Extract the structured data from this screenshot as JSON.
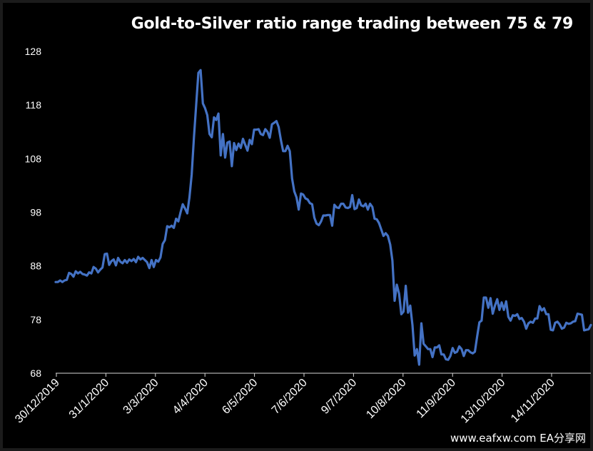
{
  "chart_data": {
    "type": "line",
    "title": "Gold-to-Silver ratio range trading between 75 & 79",
    "xlabel": "",
    "ylabel": "",
    "ylim": [
      68,
      128
    ],
    "yticks": [
      68,
      78,
      88,
      98,
      108,
      118,
      128
    ],
    "xticks": [
      "30/12/2019",
      "31/1/2020",
      "3/3/2020",
      "4/4/2020",
      "6/5/2020",
      "7/6/2020",
      "9/7/2020",
      "10/8/2020",
      "11/9/2020",
      "13/10/2020",
      "14/11/2020"
    ],
    "grid": false,
    "legend": "none",
    "color": "#4472c4",
    "series": [
      {
        "values": [
          85.0,
          85.0,
          85.3,
          85.0,
          85.3,
          85.4,
          86.7,
          86.5,
          86.0,
          87.0,
          86.6,
          86.9,
          86.5,
          86.4,
          86.2,
          86.8,
          86.6,
          87.8,
          87.5,
          86.8,
          87.3,
          87.7,
          90.2,
          90.3,
          88.2,
          88.9,
          89.2,
          88.1,
          89.5,
          88.8,
          88.5,
          89.1,
          88.6,
          89.2,
          88.9,
          89.3,
          88.7,
          89.7,
          89.2,
          89.5,
          89.1,
          88.7,
          87.6,
          89.1,
          87.8,
          89.1,
          88.8,
          89.6,
          92.1,
          92.8,
          95.4,
          95.2,
          95.5,
          95.1,
          96.8,
          96.3,
          98.0,
          99.5,
          98.7,
          97.8,
          100.8,
          105.0,
          112.0,
          118.0,
          124.0,
          124.5,
          118.3,
          117.4,
          116.1,
          112.6,
          112.0,
          115.7,
          115.2,
          116.4,
          108.6,
          112.6,
          108.2,
          111.0,
          111.2,
          106.6,
          110.9,
          109.6,
          110.8,
          110.0,
          111.7,
          110.6,
          109.5,
          111.5,
          110.7,
          113.4,
          113.4,
          113.5,
          112.6,
          112.4,
          113.5,
          113.0,
          111.9,
          114.4,
          114.7,
          115.0,
          113.9,
          111.5,
          109.4,
          109.4,
          110.4,
          109.4,
          104.3,
          101.9,
          100.8,
          98.5,
          101.5,
          101.3,
          100.6,
          100.4,
          99.7,
          99.5,
          97.0,
          95.9,
          95.6,
          96.3,
          97.4,
          97.4,
          97.5,
          97.5,
          95.5,
          99.4,
          98.9,
          98.8,
          99.6,
          99.6,
          98.9,
          98.8,
          99.0,
          101.2,
          98.6,
          98.8,
          100.4,
          99.3,
          99.1,
          99.6,
          98.5,
          99.6,
          99.0,
          96.8,
          96.7,
          96.0,
          94.8,
          93.6,
          94.1,
          93.6,
          92.0,
          89.0,
          81.5,
          84.5,
          82.8,
          79.0,
          79.5,
          84.3,
          79.3,
          80.6,
          77.0,
          71.3,
          72.5,
          69.6,
          77.3,
          73.5,
          73.0,
          72.5,
          72.5,
          71.0,
          72.8,
          72.8,
          73.2,
          71.5,
          71.5,
          70.6,
          70.5,
          71.2,
          72.7,
          71.8,
          72.0,
          73.0,
          72.5,
          71.2,
          72.3,
          72.3,
          71.9,
          71.7,
          72.0,
          74.8,
          77.5,
          77.8,
          82.1,
          82.1,
          80.2,
          82.0,
          79.1,
          80.6,
          81.8,
          79.8,
          81.2,
          79.8,
          81.4,
          78.5,
          77.8,
          78.8,
          78.7,
          79.0,
          78.1,
          78.3,
          77.6,
          76.3,
          77.3,
          77.6,
          77.4,
          78.2,
          78.2,
          80.5,
          79.7,
          80.1,
          79.0,
          79.0,
          76.1,
          76.0,
          77.4,
          77.6,
          77.1,
          76.3,
          76.5,
          77.4,
          77.2,
          77.3,
          77.6,
          77.7,
          79.1,
          79.0,
          78.9,
          76.0,
          76.1,
          76.2,
          77.0
        ]
      }
    ]
  },
  "watermark": "www.eafxw.com   EA分享网"
}
